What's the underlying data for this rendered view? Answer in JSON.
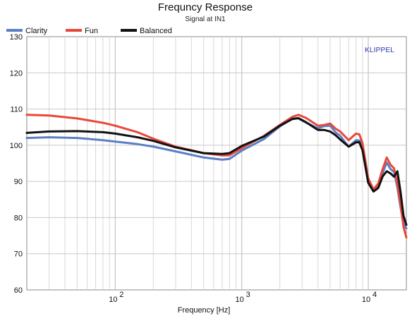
{
  "chart_data": {
    "type": "line",
    "title": "Frequncy Response",
    "subtitle": "Signal at IN1",
    "xlabel": "Frequency [Hz]",
    "ylabel": "",
    "badge": "KLIPPEL",
    "xscale": "log",
    "xlim": [
      20,
      20000
    ],
    "ylim": [
      60,
      130
    ],
    "yticks": [
      60,
      70,
      80,
      90,
      100,
      110,
      120,
      130
    ],
    "xticks": [
      {
        "value": 100,
        "base": "10",
        "exp": "2"
      },
      {
        "value": 1000,
        "base": "10",
        "exp": "3"
      },
      {
        "value": 10000,
        "base": "10",
        "exp": "4"
      }
    ],
    "grid": true,
    "legend_position": "top-left",
    "series": [
      {
        "name": "Clarity",
        "color": "#5b7fc4",
        "x": [
          20,
          30,
          50,
          80,
          100,
          150,
          200,
          300,
          500,
          700,
          800,
          1000,
          1500,
          2000,
          2500,
          2800,
          3200,
          4000,
          4500,
          5000,
          5500,
          6000,
          7000,
          8000,
          8500,
          9000,
          10000,
          11000,
          12000,
          13000,
          14000,
          15000,
          16000,
          17000,
          18000,
          19000,
          20000
        ],
        "y": [
          102,
          102.2,
          102,
          101.4,
          101,
          100.3,
          99.6,
          98.3,
          96.6,
          96,
          96.2,
          98.5,
          101.7,
          105.2,
          107.3,
          107.4,
          106.3,
          104.7,
          105.3,
          105.4,
          103.6,
          102.6,
          99.6,
          101.4,
          101.3,
          99.5,
          89.6,
          87.3,
          88.8,
          92.3,
          95.2,
          93.4,
          92.6,
          88.3,
          82.8,
          78.3,
          77
        ]
      },
      {
        "name": "Fun",
        "color": "#e8483a",
        "x": [
          20,
          30,
          50,
          80,
          100,
          150,
          200,
          300,
          500,
          700,
          800,
          1000,
          1500,
          2000,
          2500,
          2800,
          3200,
          4000,
          4500,
          5000,
          5500,
          6000,
          7000,
          8000,
          8500,
          9000,
          10000,
          11000,
          12000,
          13000,
          14000,
          15000,
          16000,
          17000,
          18000,
          19000,
          20000
        ],
        "y": [
          108.4,
          108.2,
          107.4,
          106.2,
          105.4,
          103.6,
          101.8,
          99.6,
          97.8,
          97.2,
          97.2,
          99.2,
          102.6,
          105.6,
          107.8,
          108.4,
          107.6,
          105.4,
          105.6,
          106,
          104.6,
          103.8,
          101.4,
          103.2,
          103,
          100.6,
          90.8,
          87.8,
          89.4,
          93.4,
          96.6,
          94.6,
          93.6,
          89.4,
          83.6,
          77.4,
          74.5
        ]
      },
      {
        "name": "Balanced",
        "color": "#111111",
        "x": [
          20,
          30,
          50,
          80,
          100,
          150,
          200,
          300,
          500,
          700,
          800,
          1000,
          1500,
          2000,
          2500,
          2800,
          3200,
          4000,
          4500,
          5000,
          5500,
          6000,
          7000,
          8000,
          8500,
          9000,
          10000,
          11000,
          12000,
          13000,
          14000,
          15000,
          16000,
          17000,
          18000,
          19000,
          20000
        ],
        "y": [
          103.4,
          103.8,
          103.9,
          103.6,
          103.2,
          102.2,
          101.2,
          99.4,
          97.8,
          97.6,
          97.8,
          99.8,
          102.4,
          105.4,
          107.2,
          107.5,
          106.4,
          104.2,
          104.2,
          103.8,
          102.8,
          101.6,
          99.6,
          100.8,
          100.8,
          98.6,
          89.6,
          87.2,
          88.2,
          91.4,
          92.8,
          92.2,
          91.3,
          92.8,
          87,
          80.4,
          78
        ]
      }
    ]
  }
}
